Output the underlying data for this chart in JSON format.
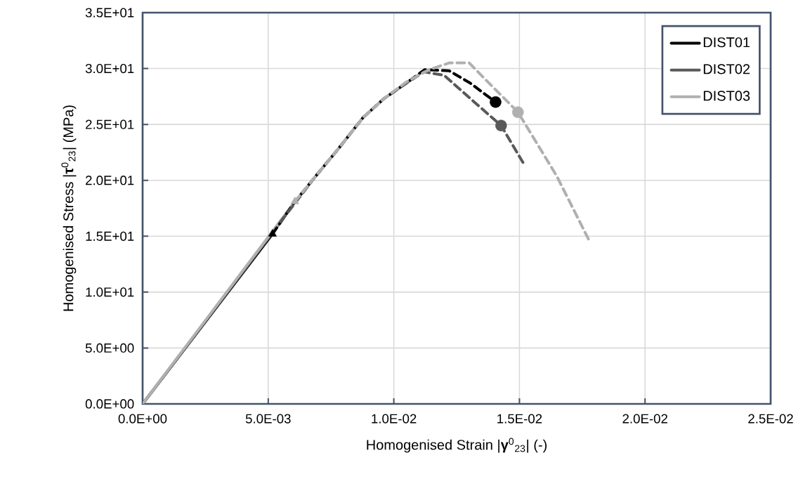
{
  "chart_data": {
    "type": "line",
    "xlabel": "Homogenised Strain |**γ**$^{0}$$_{23}$| (-)",
    "ylabel": "Homogenised Stress |**τ**$^{0}$$_{23}$| (MPa)",
    "xlim": [
      0,
      0.025
    ],
    "ylim": [
      0,
      35
    ],
    "xticks": [
      {
        "value": 0,
        "label": "0.0E+00"
      },
      {
        "value": 0.005,
        "label": "5.0E-03"
      },
      {
        "value": 0.01,
        "label": "1.0E-02"
      },
      {
        "value": 0.015,
        "label": "1.5E-02"
      },
      {
        "value": 0.02,
        "label": "2.0E-02"
      },
      {
        "value": 0.025,
        "label": "2.5E-02"
      }
    ],
    "yticks": [
      {
        "value": 0,
        "label": "0.0E+00"
      },
      {
        "value": 5,
        "label": "5.0E+00"
      },
      {
        "value": 10,
        "label": "1.0E+01"
      },
      {
        "value": 15,
        "label": "1.5E+01"
      },
      {
        "value": 20,
        "label": "2.0E+01"
      },
      {
        "value": 25,
        "label": "2.5E+01"
      },
      {
        "value": 30,
        "label": "3.0E+01"
      },
      {
        "value": 35,
        "label": "3.5E+01"
      }
    ],
    "grid": true,
    "legend": "top right",
    "series": [
      {
        "name": "DIST01",
        "color": "#000000",
        "line_style": "solid",
        "marker": "none",
        "x": [
          0,
          0.00517
        ],
        "values": [
          0,
          15.2
        ]
      },
      {
        "name": "DIST02",
        "color": "#595959",
        "line_style": "solid",
        "marker": "none",
        "x": [
          0,
          0.0055
        ],
        "values": [
          0,
          16.3
        ]
      },
      {
        "name": "DIST03",
        "color": "#b0b0b0",
        "line_style": "solid",
        "marker": "none",
        "x": [
          0,
          0.00606
        ],
        "values": [
          0,
          18.1
        ]
      },
      {
        "color": "#000000",
        "line_style": "dashed",
        "marker": "none",
        "x": [
          0.00517,
          0.006,
          0.0069,
          0.00782,
          0.00877,
          0.0096,
          0.0105,
          0.01123,
          0.0122,
          0.01304,
          0.01405
        ],
        "values": [
          15.2,
          17.9,
          20.4,
          22.9,
          25.6,
          27.3,
          28.7,
          29.9,
          29.8,
          28.7,
          27.0
        ]
      },
      {
        "color": "#595959",
        "line_style": "dashed",
        "marker": "none",
        "x": [
          0.0055,
          0.0069,
          0.00782,
          0.00877,
          0.0096,
          0.0105,
          0.0112,
          0.012,
          0.0128,
          0.01427,
          0.01514
        ],
        "values": [
          16.3,
          20.4,
          22.9,
          25.6,
          27.3,
          28.7,
          29.7,
          29.4,
          27.8,
          24.9,
          21.6
        ]
      },
      {
        "color": "#b0b0b0",
        "line_style": "dashed",
        "marker": "none",
        "x": [
          0.00606,
          0.0069,
          0.00782,
          0.00877,
          0.0096,
          0.0105,
          0.0114,
          0.0122,
          0.013,
          0.0137,
          0.01494,
          0.01648,
          0.0178
        ],
        "values": [
          18.1,
          20.4,
          22.9,
          25.6,
          27.3,
          28.8,
          29.9,
          30.5,
          30.5,
          28.9,
          26.1,
          20.4,
          14.5
        ]
      },
      {
        "color": "#000000",
        "type": "scatter",
        "marker": "triangle",
        "x": [
          0.00517
        ],
        "values": [
          15.2
        ]
      },
      {
        "color": "#b0b0b0",
        "type": "scatter",
        "marker": "triangle",
        "x": [
          0.00606
        ],
        "values": [
          18.1
        ]
      },
      {
        "color": "#000000",
        "type": "scatter",
        "marker": "circle",
        "x": [
          0.01405
        ],
        "values": [
          27.0
        ]
      },
      {
        "color": "#595959",
        "type": "scatter",
        "marker": "circle",
        "x": [
          0.01427
        ],
        "values": [
          24.9
        ]
      },
      {
        "color": "#b0b0b0",
        "type": "scatter",
        "marker": "circle",
        "x": [
          0.01494
        ],
        "values": [
          26.1
        ]
      }
    ]
  }
}
